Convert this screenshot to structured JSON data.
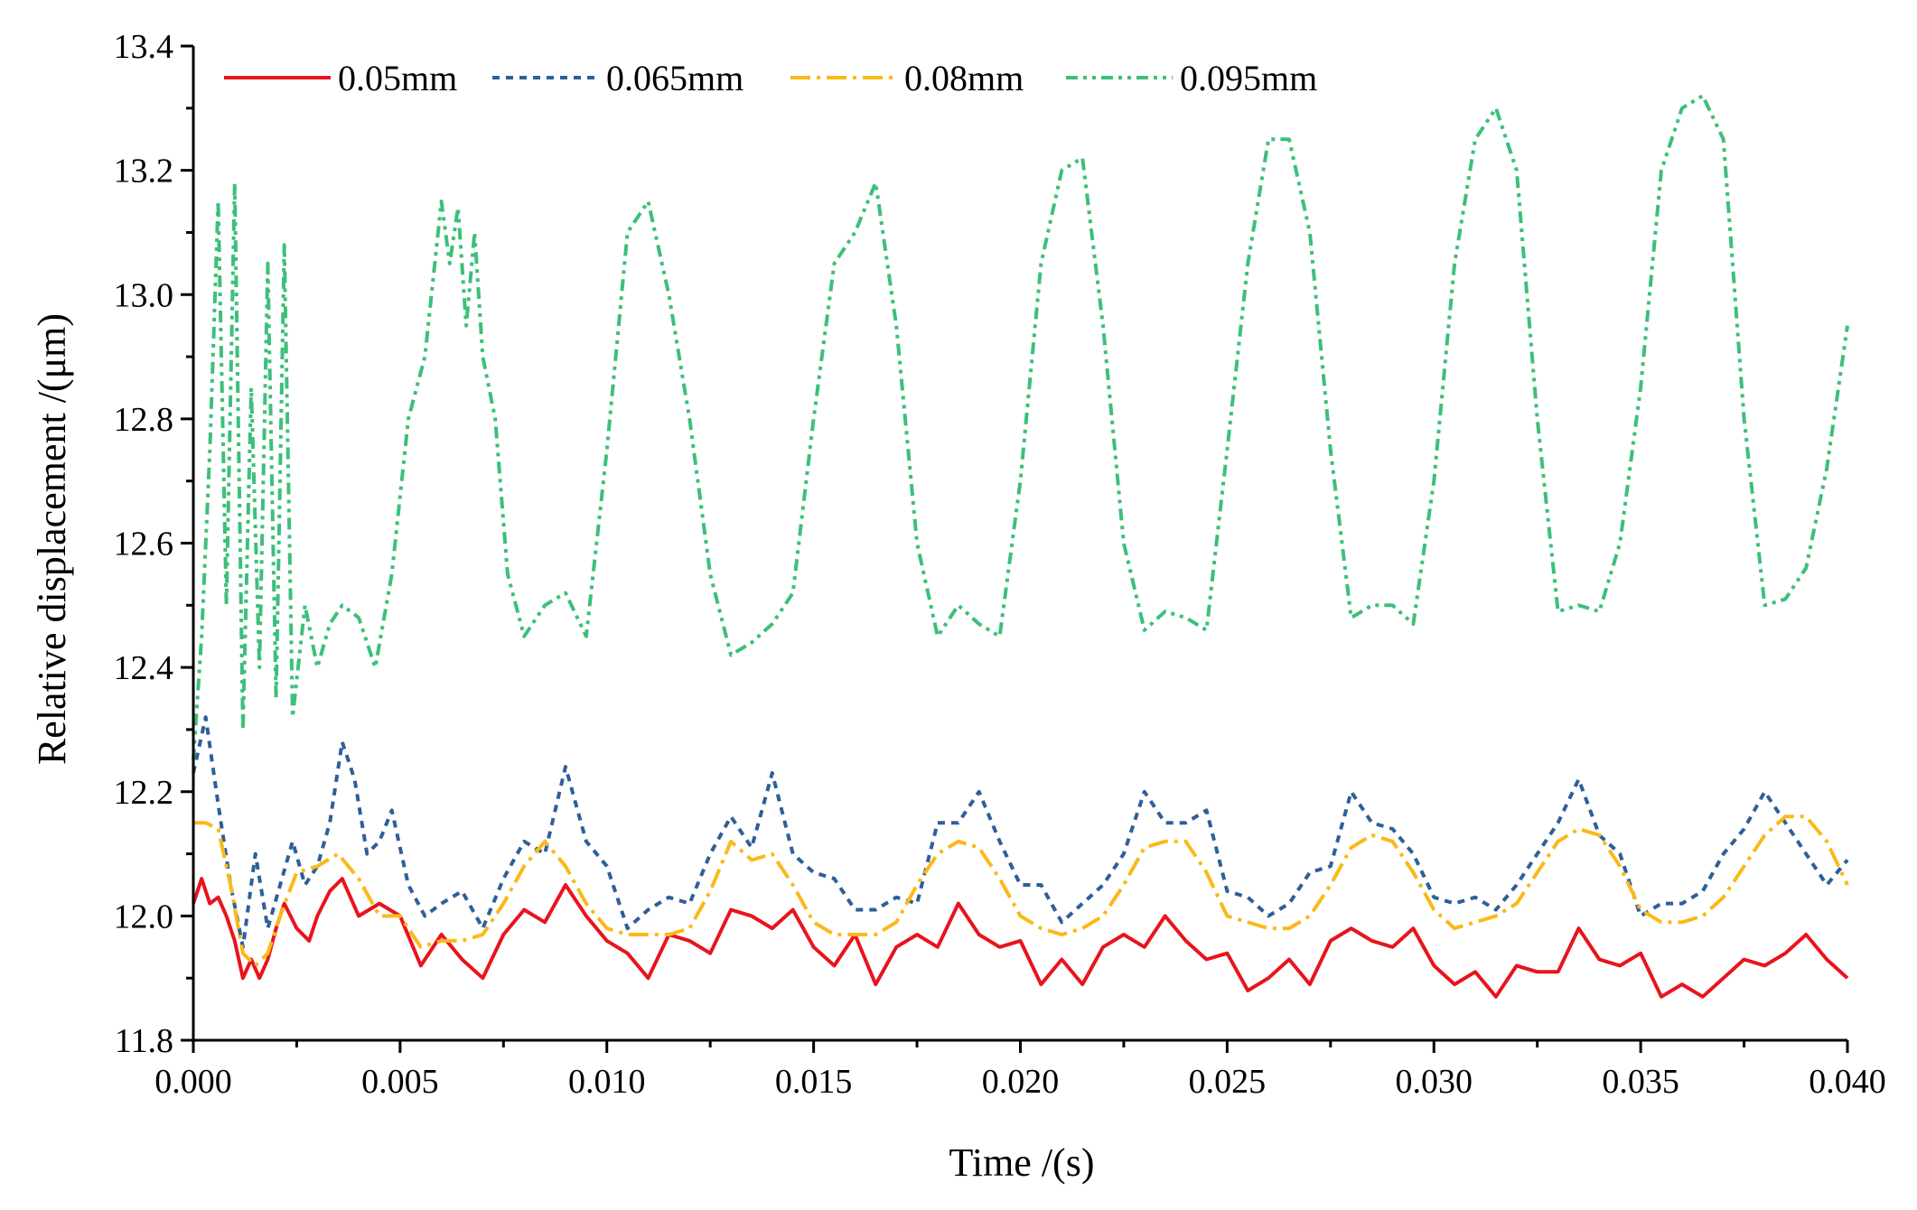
{
  "chart_data": {
    "type": "line",
    "title": "",
    "xlabel": "Time /(s)",
    "ylabel": "Relative displacement /(μm)",
    "xlim": [
      0,
      0.04
    ],
    "ylim": [
      11.8,
      13.4
    ],
    "x_ticks": [
      "0.000",
      "0.005",
      "0.010",
      "0.015",
      "0.020",
      "0.025",
      "0.030",
      "0.035",
      "0.040"
    ],
    "y_ticks": [
      "11.8",
      "12.0",
      "12.2",
      "12.4",
      "12.6",
      "12.8",
      "13.0",
      "13.2",
      "13.4"
    ],
    "legend_position": "top-left",
    "series": [
      {
        "name": "0.05mm",
        "color": "#e8141c",
        "dash": "solid",
        "x": [
          0,
          0.0002,
          0.0004,
          0.0006,
          0.0008,
          0.001,
          0.0012,
          0.0014,
          0.0016,
          0.0018,
          0.002,
          0.0022,
          0.0025,
          0.0028,
          0.003,
          0.0033,
          0.0036,
          0.004,
          0.0045,
          0.005,
          0.0055,
          0.006,
          0.0065,
          0.007,
          0.0075,
          0.008,
          0.0085,
          0.009,
          0.0095,
          0.01,
          0.0105,
          0.011,
          0.0115,
          0.012,
          0.0125,
          0.013,
          0.0135,
          0.014,
          0.0145,
          0.015,
          0.0155,
          0.016,
          0.0165,
          0.017,
          0.0175,
          0.018,
          0.0185,
          0.019,
          0.0195,
          0.02,
          0.0205,
          0.021,
          0.0215,
          0.022,
          0.0225,
          0.023,
          0.0235,
          0.024,
          0.0245,
          0.025,
          0.0255,
          0.026,
          0.0265,
          0.027,
          0.0275,
          0.028,
          0.0285,
          0.029,
          0.0295,
          0.03,
          0.0305,
          0.031,
          0.0315,
          0.032,
          0.0325,
          0.033,
          0.0335,
          0.034,
          0.0345,
          0.035,
          0.0355,
          0.036,
          0.0365,
          0.037,
          0.0375,
          0.038,
          0.0385,
          0.039,
          0.0395,
          0.04
        ],
        "y": [
          12.02,
          12.06,
          12.02,
          12.03,
          12.0,
          11.96,
          11.9,
          11.93,
          11.9,
          11.93,
          11.98,
          12.02,
          11.98,
          11.96,
          12.0,
          12.04,
          12.06,
          12.0,
          12.02,
          12.0,
          11.92,
          11.97,
          11.93,
          11.9,
          11.97,
          12.01,
          11.99,
          12.05,
          12.0,
          11.96,
          11.94,
          11.9,
          11.97,
          11.96,
          11.94,
          12.01,
          12.0,
          11.98,
          12.01,
          11.95,
          11.92,
          11.97,
          11.89,
          11.95,
          11.97,
          11.95,
          12.02,
          11.97,
          11.95,
          11.96,
          11.89,
          11.93,
          11.89,
          11.95,
          11.97,
          11.95,
          12.0,
          11.96,
          11.93,
          11.94,
          11.88,
          11.9,
          11.93,
          11.89,
          11.96,
          11.98,
          11.96,
          11.95,
          11.98,
          11.92,
          11.89,
          11.91,
          11.87,
          11.92,
          11.91,
          11.91,
          11.98,
          11.93,
          11.92,
          11.94,
          11.87,
          11.89,
          11.87,
          11.9,
          11.93,
          11.92,
          11.94,
          11.97,
          11.93,
          11.9
        ]
      },
      {
        "name": "0.065mm",
        "color": "#2e5f99",
        "dash": "8 7",
        "x": [
          0,
          0.0003,
          0.0006,
          0.0009,
          0.0012,
          0.0015,
          0.0018,
          0.0021,
          0.0024,
          0.0027,
          0.003,
          0.0033,
          0.0036,
          0.0039,
          0.0042,
          0.0045,
          0.0048,
          0.0052,
          0.0056,
          0.006,
          0.0065,
          0.007,
          0.0075,
          0.008,
          0.0085,
          0.009,
          0.0095,
          0.01,
          0.0105,
          0.011,
          0.0115,
          0.012,
          0.0125,
          0.013,
          0.0135,
          0.014,
          0.0145,
          0.015,
          0.0155,
          0.016,
          0.0165,
          0.017,
          0.0175,
          0.018,
          0.0185,
          0.019,
          0.0195,
          0.02,
          0.0205,
          0.021,
          0.0215,
          0.022,
          0.0225,
          0.023,
          0.0235,
          0.024,
          0.0245,
          0.025,
          0.0255,
          0.026,
          0.0265,
          0.027,
          0.0275,
          0.028,
          0.0285,
          0.029,
          0.0295,
          0.03,
          0.0305,
          0.031,
          0.0315,
          0.032,
          0.0325,
          0.033,
          0.0335,
          0.034,
          0.0345,
          0.035,
          0.0355,
          0.036,
          0.0365,
          0.037,
          0.0375,
          0.038,
          0.0385,
          0.039,
          0.0395,
          0.04
        ],
        "y": [
          12.23,
          12.32,
          12.18,
          12.05,
          11.95,
          12.1,
          11.98,
          12.05,
          12.12,
          12.05,
          12.08,
          12.15,
          12.28,
          12.22,
          12.1,
          12.12,
          12.17,
          12.05,
          12.0,
          12.02,
          12.04,
          11.98,
          12.06,
          12.12,
          12.1,
          12.24,
          12.12,
          12.08,
          11.98,
          12.01,
          12.03,
          12.02,
          12.1,
          12.16,
          12.11,
          12.23,
          12.1,
          12.07,
          12.06,
          12.01,
          12.01,
          12.03,
          12.02,
          12.15,
          12.15,
          12.2,
          12.12,
          12.05,
          12.05,
          11.99,
          12.02,
          12.05,
          12.1,
          12.2,
          12.15,
          12.15,
          12.17,
          12.04,
          12.03,
          12.0,
          12.02,
          12.07,
          12.08,
          12.2,
          12.15,
          12.14,
          12.1,
          12.03,
          12.02,
          12.03,
          12.01,
          12.05,
          12.1,
          12.15,
          12.22,
          12.13,
          12.1,
          12.0,
          12.02,
          12.02,
          12.04,
          12.1,
          12.14,
          12.2,
          12.15,
          12.1,
          12.05,
          12.09
        ]
      },
      {
        "name": "0.08mm",
        "color": "#fbb918",
        "dash": "22 7 4 7",
        "x": [
          0,
          0.0003,
          0.0006,
          0.0009,
          0.0012,
          0.0015,
          0.0018,
          0.0021,
          0.0025,
          0.003,
          0.0035,
          0.004,
          0.0045,
          0.005,
          0.0055,
          0.006,
          0.0065,
          0.007,
          0.0075,
          0.008,
          0.0085,
          0.009,
          0.0095,
          0.01,
          0.0105,
          0.011,
          0.0115,
          0.012,
          0.0125,
          0.013,
          0.0135,
          0.014,
          0.0145,
          0.015,
          0.0155,
          0.016,
          0.0165,
          0.017,
          0.0175,
          0.018,
          0.0185,
          0.019,
          0.0195,
          0.02,
          0.0205,
          0.021,
          0.0215,
          0.022,
          0.0225,
          0.023,
          0.0235,
          0.024,
          0.0245,
          0.025,
          0.0255,
          0.026,
          0.0265,
          0.027,
          0.0275,
          0.028,
          0.0285,
          0.029,
          0.0295,
          0.03,
          0.0305,
          0.031,
          0.0315,
          0.032,
          0.0325,
          0.033,
          0.0335,
          0.034,
          0.0345,
          0.035,
          0.0355,
          0.036,
          0.0365,
          0.037,
          0.0375,
          0.038,
          0.0385,
          0.039,
          0.0395,
          0.04
        ],
        "y": [
          12.15,
          12.15,
          12.14,
          12.05,
          11.94,
          11.92,
          11.94,
          12.0,
          12.07,
          12.08,
          12.1,
          12.06,
          12.0,
          12.0,
          11.95,
          11.96,
          11.96,
          11.97,
          12.02,
          12.08,
          12.12,
          12.08,
          12.02,
          11.98,
          11.97,
          11.97,
          11.97,
          11.98,
          12.04,
          12.12,
          12.09,
          12.1,
          12.05,
          11.99,
          11.97,
          11.97,
          11.97,
          11.99,
          12.05,
          12.1,
          12.12,
          12.11,
          12.06,
          12.0,
          11.98,
          11.97,
          11.98,
          12.0,
          12.05,
          12.11,
          12.12,
          12.12,
          12.07,
          12.0,
          11.99,
          11.98,
          11.98,
          12.0,
          12.05,
          12.11,
          12.13,
          12.12,
          12.07,
          12.01,
          11.98,
          11.99,
          12.0,
          12.02,
          12.07,
          12.12,
          12.14,
          12.13,
          12.08,
          12.01,
          11.99,
          11.99,
          12.0,
          12.03,
          12.08,
          12.13,
          12.16,
          12.16,
          12.12,
          12.05
        ]
      },
      {
        "name": "0.095mm",
        "color": "#3cc078",
        "dash": "13 6 4 6 4 6",
        "x": [
          0,
          0.0002,
          0.0004,
          0.0006,
          0.0008,
          0.001,
          0.0012,
          0.0014,
          0.0016,
          0.0018,
          0.002,
          0.0022,
          0.0024,
          0.0027,
          0.003,
          0.0033,
          0.0036,
          0.004,
          0.0044,
          0.0048,
          0.0052,
          0.0056,
          0.006,
          0.0062,
          0.0064,
          0.0066,
          0.0068,
          0.007,
          0.0073,
          0.0076,
          0.008,
          0.0085,
          0.009,
          0.0095,
          0.01,
          0.0105,
          0.011,
          0.0115,
          0.012,
          0.0125,
          0.013,
          0.0135,
          0.014,
          0.0145,
          0.015,
          0.0155,
          0.016,
          0.0165,
          0.017,
          0.0175,
          0.018,
          0.0185,
          0.019,
          0.0195,
          0.02,
          0.0205,
          0.021,
          0.0215,
          0.022,
          0.0225,
          0.023,
          0.0235,
          0.024,
          0.0245,
          0.025,
          0.0255,
          0.026,
          0.0265,
          0.027,
          0.0275,
          0.028,
          0.0285,
          0.029,
          0.0295,
          0.03,
          0.0305,
          0.031,
          0.0315,
          0.032,
          0.0325,
          0.033,
          0.0335,
          0.034,
          0.0345,
          0.035,
          0.0355,
          0.036,
          0.0365,
          0.037,
          0.0375,
          0.038,
          0.0385,
          0.039,
          0.0395,
          0.04
        ],
        "y": [
          12.25,
          12.45,
          12.75,
          13.15,
          12.5,
          13.18,
          12.3,
          12.85,
          12.4,
          13.05,
          12.35,
          13.08,
          12.32,
          12.5,
          12.4,
          12.47,
          12.5,
          12.48,
          12.4,
          12.55,
          12.8,
          12.9,
          13.15,
          13.05,
          13.14,
          12.95,
          13.1,
          12.9,
          12.8,
          12.55,
          12.45,
          12.5,
          12.52,
          12.45,
          12.75,
          13.1,
          13.15,
          13.0,
          12.8,
          12.55,
          12.42,
          12.44,
          12.47,
          12.52,
          12.8,
          13.05,
          13.1,
          13.18,
          12.95,
          12.6,
          12.45,
          12.5,
          12.47,
          12.45,
          12.7,
          13.05,
          13.2,
          13.22,
          12.95,
          12.6,
          12.46,
          12.49,
          12.48,
          12.46,
          12.75,
          13.05,
          13.25,
          13.25,
          13.1,
          12.75,
          12.48,
          12.5,
          12.5,
          12.47,
          12.7,
          13.05,
          13.25,
          13.3,
          13.2,
          12.8,
          12.49,
          12.5,
          12.49,
          12.6,
          12.85,
          13.2,
          13.3,
          13.32,
          13.25,
          12.8,
          12.5,
          12.51,
          12.56,
          12.72,
          12.95
        ]
      }
    ]
  }
}
